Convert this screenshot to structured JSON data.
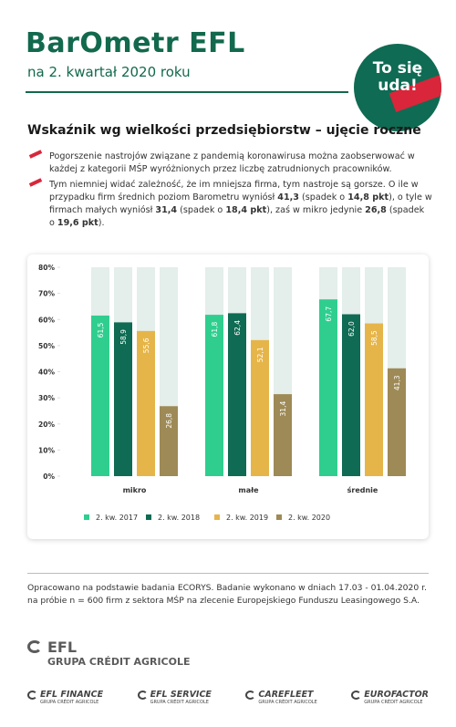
{
  "header": {
    "title": "BarOmetr EFL",
    "subtitle": "na 2. kwartał 2020 roku",
    "badge": [
      "To się",
      "uda!"
    ]
  },
  "section_title": "Wskaźnik wg wielkości przedsiębiorstw – ujęcie roczne",
  "bullets": [
    [
      "Pogorszenie nastrojów związane z pandemią koronawirusa można zaobserwować w każdej z kategorii MŚP wyróżnionych przez liczbę zatrudnionych pracowników."
    ],
    [
      "Tym niemniej widać zależność, że im mniejsza firma, tym nastroje są gorsze. O ile w przypadku firm średnich poziom Barometru wyniósł ",
      "41,3",
      " (spadek o ",
      "14,8 pkt",
      "), o tyle w firmach małych wyniósł ",
      "31,4",
      " (spadek o ",
      "18,4 pkt",
      "), zaś w mikro jedynie ",
      "26,8",
      " (spadek o ",
      "19,6 pkt",
      ")."
    ]
  ],
  "chart_data": {
    "type": "bar",
    "categories": [
      "mikro",
      "małe",
      "średnie"
    ],
    "series": [
      {
        "name": "2. kw. 2017",
        "color": "#2fce8f",
        "values": [
          61.5,
          61.8,
          67.7
        ],
        "value_labels": [
          "61,5",
          "61,8",
          "67,7"
        ]
      },
      {
        "name": "2. kw. 2018",
        "color": "#0f6b53",
        "values": [
          58.9,
          62.4,
          62.0
        ],
        "value_labels": [
          "58,9",
          "62,4",
          "62,0"
        ]
      },
      {
        "name": "2. kw. 2019",
        "color": "#e6b54a",
        "values": [
          55.6,
          52.1,
          58.5
        ],
        "value_labels": [
          "55,6",
          "52,1",
          "58,5"
        ]
      },
      {
        "name": "2. kw. 2020",
        "color": "#9e8a56",
        "values": [
          26.8,
          31.4,
          41.3
        ],
        "value_labels": [
          "26,8",
          "31,4",
          "41,3"
        ]
      }
    ],
    "ylim": [
      0,
      80
    ],
    "yticks": [
      {
        "value": 0,
        "label": "0%"
      },
      {
        "value": 10,
        "label": "10%"
      },
      {
        "value": 20,
        "label": "20%"
      },
      {
        "value": 30,
        "label": "30%"
      },
      {
        "value": 40,
        "label": "40%"
      },
      {
        "value": 50,
        "label": "50%"
      },
      {
        "value": 60,
        "label": "60%"
      },
      {
        "value": 70,
        "label": "70%"
      },
      {
        "value": 80,
        "label": "80%"
      }
    ],
    "legend": "bottom"
  },
  "footnote": "Opracowano na podstawie badania ECORYS. Badanie wykonano w dniach 17.03 - 01.04.2020 r. na próbie n = 600 firm z sektora MŚP na zlecenie Europejskiego Funduszu Leasingowego S.A.",
  "main_logo": {
    "name": "EFL",
    "group": "GRUPA CRÉDIT AGRICOLE"
  },
  "logos": [
    {
      "name": "EFL FINANCE",
      "group": "GRUPA CRÉDIT AGRICOLE"
    },
    {
      "name": "EFL SERVICE",
      "group": "GRUPA CRÉDIT AGRICOLE"
    },
    {
      "name": "CAREFLEET",
      "group": "GRUPA CRÉDIT AGRICOLE"
    },
    {
      "name": "EUROFACTOR",
      "group": "GRUPA CRÉDIT AGRICOLE"
    }
  ]
}
